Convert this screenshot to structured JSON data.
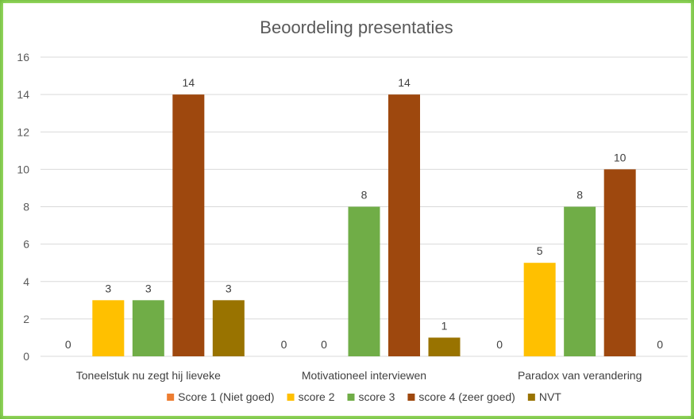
{
  "chart_data": {
    "type": "bar",
    "title": "Beoordeling presentaties",
    "xlabel": "",
    "ylabel": "",
    "ylim": [
      0,
      16
    ],
    "yticks": [
      0,
      2,
      4,
      6,
      8,
      10,
      12,
      14,
      16
    ],
    "grid": true,
    "legend_position": "bottom",
    "categories": [
      "Toneelstuk nu zegt hij lieveke",
      "Motivationeel interviewen",
      "Paradox van verandering"
    ],
    "series": [
      {
        "name": "Score 1 (Niet goed)",
        "color": "#ed7d31",
        "values": [
          0,
          0,
          0
        ]
      },
      {
        "name": "score 2",
        "color": "#ffc000",
        "values": [
          3,
          0,
          5
        ]
      },
      {
        "name": "score 3",
        "color": "#70ad47",
        "values": [
          3,
          8,
          8
        ]
      },
      {
        "name": "score 4 (zeer goed)",
        "color": "#9e480e",
        "values": [
          14,
          14,
          10
        ]
      },
      {
        "name": "NVT",
        "color": "#997300",
        "values": [
          3,
          1,
          0
        ]
      }
    ]
  }
}
